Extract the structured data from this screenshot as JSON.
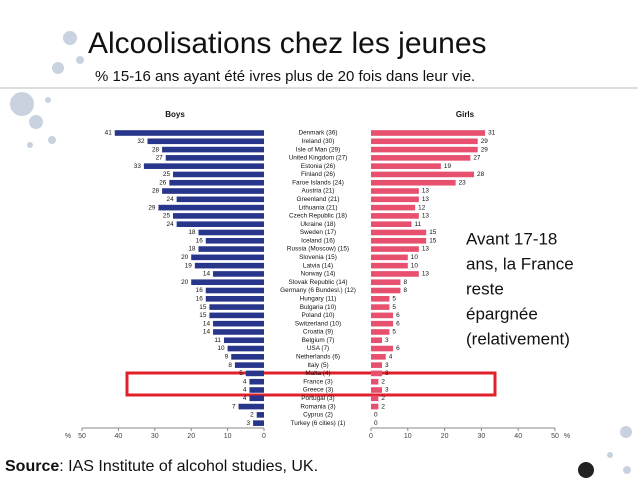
{
  "chart_data": {
    "type": "butterfly",
    "title": "Alcoolisations chez les jeunes",
    "subtitle": "% 15-16 ans ayant été ivres plus de 20 fois dans leur vie.",
    "categories": [
      "Denmark (36)",
      "Ireland (30)",
      "Isle of Man (29)",
      "United Kingdom (27)",
      "Estonia (26)",
      "Finland (26)",
      "Faroe Islands (24)",
      "Austria (21)",
      "Greenland (21)",
      "Lithuania (21)",
      "Czech Republic (18)",
      "Ukraine (18)",
      "Sweden (17)",
      "Iceland (16)",
      "Russia (Moscow) (15)",
      "Slovenia (15)",
      "Latvia (14)",
      "Norway (14)",
      "Slovak Republic (14)",
      "Germany (6 Bundesl.) (12)",
      "Hungary (11)",
      "Bulgaria (10)",
      "Poland (10)",
      "Switzerland (10)",
      "Croatia (9)",
      "Belgium (7)",
      "USA (7)",
      "Netherlands (6)",
      "Italy (5)",
      "Malta (4)",
      "France (3)",
      "Greece (3)",
      "Portugal (3)",
      "Romania (3)",
      "Cyprus (2)",
      "Turkey (6 cities) (1)"
    ],
    "series": [
      {
        "name": "Boys",
        "color": "#27368a",
        "values": [
          41,
          32,
          28,
          27,
          33,
          25,
          26,
          28,
          24,
          29,
          25,
          24,
          18,
          16,
          18,
          20,
          19,
          14,
          20,
          16,
          16,
          15,
          15,
          14,
          14,
          11,
          10,
          9,
          8,
          5,
          4,
          4,
          4,
          7,
          2,
          3
        ]
      },
      {
        "name": "Girls",
        "color": "#e8506f",
        "values": [
          31,
          29,
          29,
          27,
          19,
          28,
          23,
          13,
          13,
          12,
          13,
          11,
          15,
          15,
          13,
          10,
          10,
          13,
          8,
          8,
          5,
          5,
          6,
          6,
          5,
          3,
          6,
          4,
          3,
          3,
          2,
          3,
          2,
          2,
          0,
          0
        ]
      }
    ],
    "xlim": [
      0,
      50
    ],
    "xticks": [
      0,
      10,
      20,
      30,
      40,
      50
    ],
    "axis_unit": "%",
    "annotation": [
      "Avant 17-18",
      "ans, la France",
      "reste",
      "épargnée",
      "(relativement)"
    ],
    "source_label": "Source",
    "source_text": ": IAS Institute of alcohol studies, UK."
  }
}
